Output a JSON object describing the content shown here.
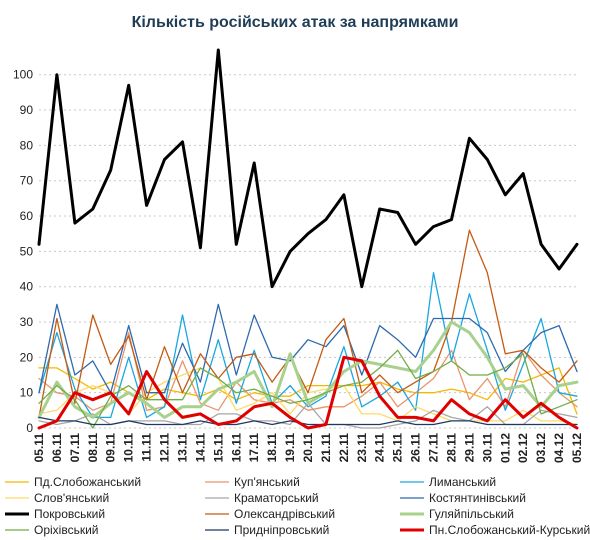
{
  "chart_data": {
    "type": "line",
    "title": "Кількість російських атак за напрямками",
    "xlabel": "",
    "ylabel": "",
    "ylim": [
      0,
      107
    ],
    "yticks": [
      0,
      10,
      20,
      30,
      40,
      50,
      60,
      70,
      80,
      90,
      100
    ],
    "grid": true,
    "legend_position": "bottom",
    "x": [
      "05.11",
      "06.11",
      "07.11",
      "08.11",
      "09.11",
      "10.11",
      "11.11",
      "12.11",
      "13.11",
      "14.11",
      "15.11",
      "16.11",
      "17.11",
      "18.11",
      "19.11",
      "20.11",
      "21.11",
      "22.11",
      "23.11",
      "24.11",
      "25.11",
      "26.11",
      "27.11",
      "28.11",
      "29.11",
      "30.11",
      "01.12",
      "02.12",
      "03.12",
      "04.12",
      "05.12"
    ],
    "x_labels": [
      "05.11",
      "",
      "06.11",
      "",
      "07.11",
      "",
      "08.11",
      "",
      "09.11",
      "",
      "10.11",
      "",
      "11.11",
      "",
      "12.11",
      "",
      "13.11",
      "",
      "14.11",
      "",
      "15.11",
      "",
      "16.11",
      "",
      "17.11",
      "",
      "18.11",
      "",
      "19.11",
      "",
      "20.11",
      "",
      "21.11",
      "",
      "22.11",
      "",
      "23.11",
      "",
      "24.11",
      "",
      "25.11",
      "",
      "26.11",
      "",
      "27.11",
      "",
      "28.11",
      "",
      "29.11",
      "",
      "30.11",
      "",
      "01.12",
      "",
      "02.12",
      "",
      "03.12",
      "",
      "04.12",
      "",
      "05.12"
    ],
    "series": [
      {
        "name": "Пд.Слобожанський",
        "color": "#f5b800",
        "width": 1.3,
        "values": [
          17,
          17,
          14,
          11,
          13,
          10,
          8,
          11,
          10,
          9,
          11,
          8,
          10,
          9,
          9,
          12,
          12,
          12,
          12,
          13,
          11,
          10,
          10,
          11,
          10,
          8,
          14,
          13,
          15,
          17,
          4
        ]
      },
      {
        "name": "Куп'янський",
        "color": "#e8956a",
        "width": 1.3,
        "values": [
          14,
          10,
          9,
          5,
          7,
          27,
          5,
          6,
          19,
          7,
          5,
          13,
          8,
          7,
          8,
          5,
          6,
          6,
          9,
          13,
          6,
          10,
          14,
          22,
          8,
          14,
          6,
          22,
          15,
          10,
          6
        ]
      },
      {
        "name": "Лиманський",
        "color": "#1aa7e0",
        "width": 1.3,
        "values": [
          10,
          27,
          11,
          3,
          3,
          20,
          3,
          6,
          32,
          8,
          25,
          7,
          22,
          7,
          12,
          6,
          9,
          23,
          6,
          9,
          13,
          5,
          44,
          19,
          38,
          22,
          5,
          18,
          31,
          10,
          9
        ]
      },
      {
        "name": "Слов'янський",
        "color": "#ffd966",
        "width": 1.3,
        "values": [
          4,
          5,
          10,
          12,
          10,
          4,
          10,
          13,
          15,
          17,
          14,
          5,
          7,
          10,
          4,
          10,
          11,
          12,
          4,
          4,
          2,
          6,
          4,
          2,
          2,
          2,
          2,
          5,
          2,
          2,
          1
        ]
      },
      {
        "name": "Краматорський",
        "color": "#a6a6a6",
        "width": 1.3,
        "values": [
          2,
          1,
          2,
          4,
          1,
          2,
          2,
          2,
          1,
          1,
          4,
          4,
          2,
          2,
          1,
          7,
          1,
          1,
          0,
          0,
          1,
          2,
          5,
          3,
          2,
          6,
          1,
          1,
          5,
          4,
          3
        ]
      },
      {
        "name": "Костянтинівський",
        "color": "#2e6aad",
        "width": 1.3,
        "values": [
          10,
          35,
          15,
          19,
          10,
          29,
          10,
          10,
          24,
          13,
          35,
          15,
          32,
          20,
          19,
          25,
          23,
          29,
          15,
          29,
          25,
          20,
          31,
          31,
          31,
          27,
          16,
          22,
          27,
          29,
          16
        ]
      },
      {
        "name": "Покровський",
        "color": "#000000",
        "width": 3,
        "values": [
          52,
          100,
          58,
          62,
          73,
          97,
          63,
          76,
          81,
          51,
          107,
          52,
          75,
          40,
          50,
          55,
          59,
          66,
          40,
          62,
          61,
          52,
          57,
          59,
          82,
          76,
          66,
          72,
          52,
          45,
          52
        ]
      },
      {
        "name": "Олександрівський",
        "color": "#c55a11",
        "width": 1.3,
        "values": [
          3,
          31,
          7,
          32,
          18,
          26,
          8,
          23,
          10,
          21,
          14,
          20,
          21,
          13,
          20,
          10,
          25,
          31,
          10,
          15,
          10,
          13,
          16,
          30,
          56,
          44,
          21,
          22,
          17,
          13,
          19
        ]
      },
      {
        "name": "Гуляйпільський",
        "color": "#a9d18e",
        "width": 3,
        "values": [
          3,
          13,
          6,
          3,
          7,
          10,
          7,
          3,
          6,
          6,
          11,
          13,
          16,
          6,
          21,
          7,
          10,
          16,
          19,
          18,
          17,
          16,
          22,
          30,
          27,
          20,
          11,
          12,
          6,
          12,
          13
        ]
      },
      {
        "name": "Оріхівський",
        "color": "#70ad47",
        "width": 1.3,
        "values": [
          7,
          12,
          8,
          0,
          9,
          12,
          8,
          8,
          8,
          17,
          14,
          10,
          11,
          9,
          7,
          8,
          10,
          12,
          13,
          17,
          22,
          14,
          16,
          19,
          15,
          15,
          17,
          21,
          4,
          6,
          8
        ]
      },
      {
        "name": "Придніпровський",
        "color": "#1f3864",
        "width": 1.3,
        "values": [
          3,
          2,
          2,
          1,
          1,
          2,
          1,
          1,
          1,
          2,
          1,
          1,
          2,
          1,
          2,
          1,
          1,
          1,
          1,
          1,
          2,
          1,
          1,
          2,
          2,
          1,
          1,
          1,
          1,
          1,
          1
        ]
      },
      {
        "name": "Пн.Слобожанський-Курський",
        "color": "#e00000",
        "width": 3,
        "values": [
          0,
          2,
          10,
          8,
          10,
          4,
          16,
          8,
          3,
          4,
          1,
          2,
          6,
          7,
          3,
          0,
          1,
          20,
          19,
          9,
          3,
          3,
          2,
          8,
          4,
          2,
          8,
          3,
          7,
          3,
          0
        ]
      }
    ]
  }
}
